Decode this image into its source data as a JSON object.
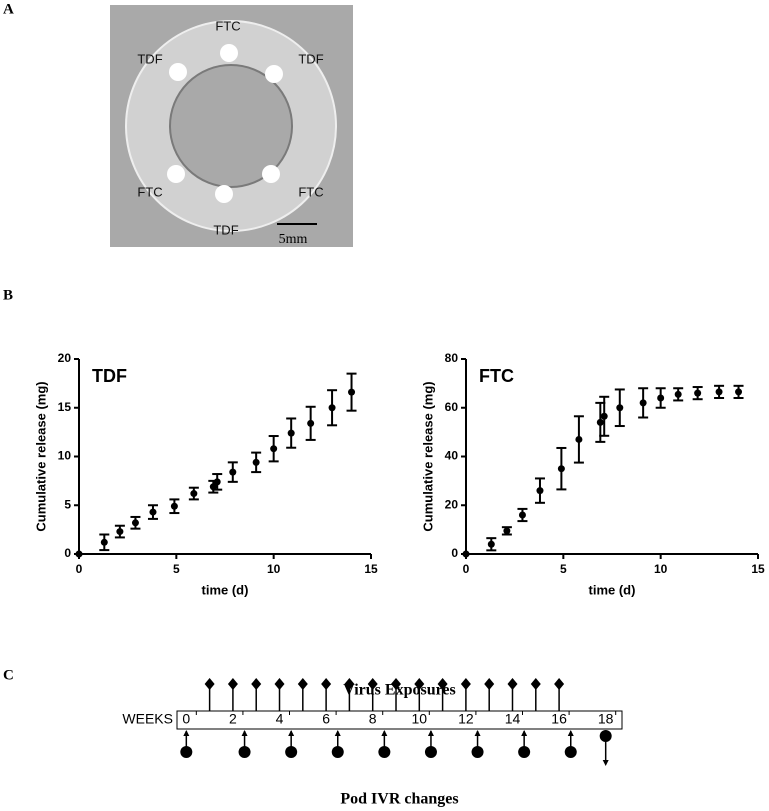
{
  "panels": [
    "A",
    "B",
    "C"
  ],
  "photo": {
    "labels": [
      "FTC",
      "TDF",
      "TDF",
      "FTC",
      "FTC",
      "TDF"
    ],
    "scale_bar": "5mm"
  },
  "chart_data": [
    {
      "type": "scatter",
      "title": "TDF",
      "xlabel": "time (d)",
      "ylabel": "Cumulative release (mg)",
      "color": "#000000",
      "x": [
        0,
        1.3,
        2.1,
        2.9,
        3.8,
        4.9,
        5.9,
        6.9,
        7.1,
        7.9,
        9.1,
        10.0,
        10.9,
        11.9,
        13.0,
        14.0
      ],
      "values": [
        0,
        1.2,
        2.3,
        3.2,
        4.3,
        4.9,
        6.2,
        6.9,
        7.4,
        8.4,
        9.4,
        10.8,
        12.4,
        13.4,
        15.0,
        16.6
      ],
      "errors": [
        0,
        0.8,
        0.6,
        0.6,
        0.7,
        0.7,
        0.6,
        0.6,
        0.8,
        1.0,
        1.0,
        1.3,
        1.5,
        1.7,
        1.8,
        1.9
      ],
      "xlim": [
        0,
        15
      ],
      "xticks": [
        0,
        5,
        10,
        15
      ],
      "ylim": [
        0,
        20
      ],
      "yticks": [
        0,
        5,
        10,
        15,
        20
      ]
    },
    {
      "type": "scatter",
      "title": "FTC",
      "xlabel": "time (d)",
      "ylabel": "Cumulative release (mg)",
      "color": "#000000",
      "x": [
        0,
        1.3,
        2.1,
        2.9,
        3.8,
        4.9,
        5.8,
        6.9,
        7.1,
        7.9,
        9.1,
        10.0,
        10.9,
        11.9,
        13.0,
        14.0
      ],
      "values": [
        0,
        4,
        9.5,
        16,
        26,
        35,
        47,
        54,
        56.5,
        60,
        62,
        64,
        65.5,
        66,
        66.5,
        66.5
      ],
      "errors": [
        0,
        2.5,
        1.5,
        2.5,
        5,
        8.5,
        9.5,
        8,
        8,
        7.5,
        6,
        4,
        2.5,
        2.5,
        2.5,
        2.5
      ],
      "xlim": [
        0,
        15
      ],
      "xticks": [
        0,
        5,
        10,
        15
      ],
      "ylim": [
        0,
        80
      ],
      "yticks": [
        0,
        20,
        40,
        60,
        80
      ]
    },
    {
      "type": "timeline",
      "title": "Virus Exposures",
      "xlabel": "Pod IVR changes",
      "ylabel": "WEEKS",
      "xlim": [
        -0.4,
        18.7
      ],
      "xticks": [
        0,
        2,
        4,
        6,
        8,
        10,
        12,
        14,
        16,
        18
      ],
      "exposures": [
        1,
        2,
        3,
        4,
        5,
        6,
        7,
        8,
        9,
        10,
        11,
        12,
        13,
        14,
        15,
        16
      ],
      "changes": [
        0,
        2.5,
        4.5,
        6.5,
        8.5,
        10.5,
        12.5,
        14.5,
        16.5,
        18
      ]
    }
  ]
}
